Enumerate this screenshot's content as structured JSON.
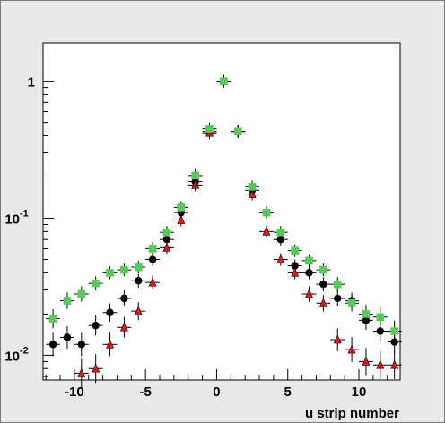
{
  "chart_data": {
    "type": "scatter",
    "xlabel": "u strip number",
    "ylabel": "",
    "title": "",
    "xlim": [
      -12.2,
      12.9
    ],
    "ylim": [
      0.0066,
      1.9
    ],
    "y_scale": "log",
    "grid": false,
    "legend": "none",
    "x_ticks": [
      {
        "value": -10,
        "label": "-10"
      },
      {
        "value": -5,
        "label": "-5"
      },
      {
        "value": 0,
        "label": "0"
      },
      {
        "value": 5,
        "label": "5"
      },
      {
        "value": 10,
        "label": "10"
      }
    ],
    "y_ticks": [
      {
        "value": 0.01,
        "base": "10",
        "exp": "-2",
        "label": ""
      },
      {
        "value": 0.1,
        "base": "10",
        "exp": "-1",
        "label": ""
      },
      {
        "value": 1,
        "base": "",
        "exp": "",
        "label": "1"
      }
    ],
    "series": [
      {
        "color": "#000000",
        "marker": "circle",
        "x": [
          -11.5,
          -10.5,
          -9.5,
          -8.5,
          -7.5,
          -6.5,
          -5.5,
          -4.5,
          -3.5,
          -2.5,
          -1.5,
          -0.5,
          0.5,
          1.5,
          2.5,
          3.5,
          4.5,
          5.5,
          6.5,
          7.5,
          8.5,
          9.5,
          10.5,
          11.5,
          12.5
        ],
        "y": [
          0.012,
          0.0135,
          0.012,
          0.0165,
          0.0205,
          0.026,
          0.035,
          0.05,
          0.07,
          0.11,
          0.185,
          0.43,
          1.0,
          0.43,
          0.16,
          0.11,
          0.07,
          0.045,
          0.04,
          0.033,
          0.026,
          0.025,
          0.018,
          0.015,
          0.0125
        ],
        "xerr": 0.5
      },
      {
        "color": "#ee1111",
        "marker": "triangle",
        "x": [
          -9.5,
          -8.5,
          -7.5,
          -6.5,
          -5.5,
          -4.5,
          -3.5,
          -2.5,
          -1.5,
          -0.5,
          0.5,
          1.5,
          2.5,
          3.5,
          4.5,
          5.5,
          6.5,
          7.5,
          8.5,
          9.5,
          10.5,
          11.5,
          12.5
        ],
        "y": [
          0.0074,
          0.008,
          0.012,
          0.016,
          0.021,
          0.034,
          0.061,
          0.097,
          0.175,
          0.42,
          1.0,
          0.43,
          0.15,
          0.08,
          0.05,
          0.04,
          0.028,
          0.024,
          0.013,
          0.011,
          0.009,
          0.0085,
          0.0085
        ],
        "xerr": 0.5
      },
      {
        "color": "#55cc55",
        "marker": "square",
        "x": [
          -11.5,
          -10.5,
          -9.5,
          -8.5,
          -7.5,
          -6.5,
          -5.5,
          -4.5,
          -3.5,
          -2.5,
          -1.5,
          -0.5,
          0.5,
          1.5,
          2.5,
          3.5,
          4.5,
          5.5,
          6.5,
          7.5,
          8.5,
          9.5,
          10.5,
          11.5,
          12.5
        ],
        "y": [
          0.0185,
          0.025,
          0.028,
          0.0335,
          0.04,
          0.042,
          0.044,
          0.06,
          0.079,
          0.12,
          0.205,
          0.45,
          1.0,
          0.43,
          0.17,
          0.11,
          0.079,
          0.058,
          0.049,
          0.042,
          0.033,
          0.024,
          0.02,
          0.019,
          0.015
        ],
        "xerr": 0.5
      }
    ]
  }
}
